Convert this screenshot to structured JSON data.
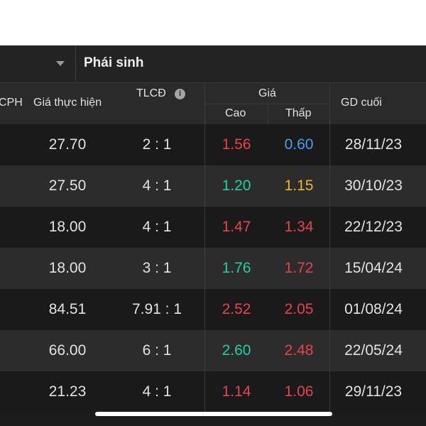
{
  "filter": {
    "dropdown_value": "",
    "tab_label": "Phái sinh"
  },
  "header": {
    "issuer_partial": "CPH",
    "strike": "Giá thực hiện",
    "ratio": "TLCĐ",
    "price_group": "Giá",
    "high": "Cao",
    "low": "Thấp",
    "last_trading": "GD cuối"
  },
  "colors": {
    "red": "#e8414c",
    "green": "#1fd0a0",
    "blue": "#4a9ff0",
    "yellow": "#f0b429"
  },
  "rows": [
    {
      "strike": "27.70",
      "ratio": "2 : 1",
      "high": "1.56",
      "high_color": "red",
      "low": "0.60",
      "low_color": "blue",
      "last": "28/11/23"
    },
    {
      "strike": "27.50",
      "ratio": "4 : 1",
      "high": "1.20",
      "high_color": "green",
      "low": "1.15",
      "low_color": "yellow",
      "last": "30/10/23"
    },
    {
      "strike": "18.00",
      "ratio": "4 : 1",
      "high": "1.47",
      "high_color": "red",
      "low": "1.34",
      "low_color": "red",
      "last": "22/12/23"
    },
    {
      "strike": "18.00",
      "ratio": "3 : 1",
      "high": "1.76",
      "high_color": "green",
      "low": "1.72",
      "low_color": "red",
      "last": "15/04/24"
    },
    {
      "strike": "84.51",
      "ratio": "7.91 : 1",
      "high": "2.52",
      "high_color": "red",
      "low": "2.05",
      "low_color": "red",
      "last": "01/08/24"
    },
    {
      "strike": "66.00",
      "ratio": "6 : 1",
      "high": "2.60",
      "high_color": "green",
      "low": "2.48",
      "low_color": "red",
      "last": "22/05/24"
    },
    {
      "strike": "21.23",
      "ratio": "4 : 1",
      "high": "1.14",
      "high_color": "red",
      "low": "1.06",
      "low_color": "red",
      "last": "29/11/23"
    }
  ]
}
